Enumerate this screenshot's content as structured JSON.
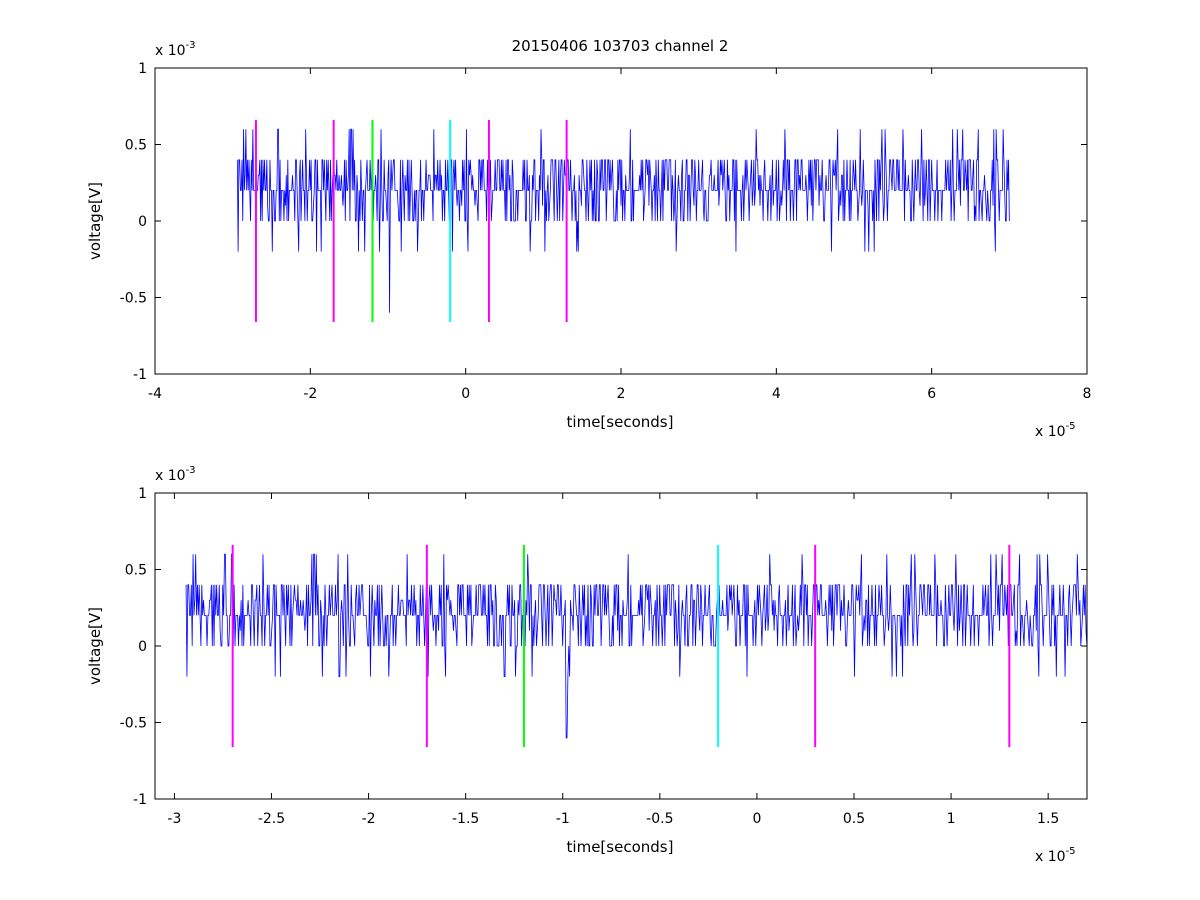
{
  "figure": {
    "title": "20150406 103703 channel 2"
  },
  "chart_data": [
    {
      "type": "line",
      "xlabel": "time[seconds]",
      "ylabel": "voltage[V]",
      "x_multiplier": {
        "base": "x 10",
        "exp": "-5"
      },
      "y_multiplier": {
        "base": "x 10",
        "exp": "-3"
      },
      "xlim": [
        -4e-05,
        8e-05
      ],
      "ylim": [
        -0.001,
        0.001
      ],
      "xticks": [
        -4,
        -2,
        0,
        2,
        4,
        6,
        8
      ],
      "xtick_labels": [
        "-4",
        "-2",
        "0",
        "2",
        "4",
        "6",
        "8"
      ],
      "yticks": [
        -1,
        -0.5,
        0,
        0.5,
        1
      ],
      "ytick_labels": [
        "-1",
        "-0.5",
        "0",
        "0.5",
        "1"
      ],
      "grid": false,
      "series": [
        {
          "color": "#0000ff",
          "x_start": -2.94e-05,
          "x_end": 7e-05,
          "sample_levels_mV": [
            0,
            0.1,
            0.2,
            0.3,
            0.4,
            0.5,
            0.6,
            -0.1,
            -0.2,
            -0.3,
            -0.4,
            -0.6
          ],
          "baseline_mV": 0.2,
          "min_mV": -0.6,
          "max_mV": 0.6
        }
      ],
      "markers": [
        {
          "x": -2.7e-05,
          "color": "#ff00ff",
          "ymin": -0.00066,
          "ymax": 0.00066
        },
        {
          "x": -1.7e-05,
          "color": "#ff00ff",
          "ymin": -0.00066,
          "ymax": 0.00066
        },
        {
          "x": -1.2e-05,
          "color": "#00ff00",
          "ymin": -0.00066,
          "ymax": 0.00066
        },
        {
          "x": -2e-06,
          "color": "#00ffff",
          "ymin": -0.00066,
          "ymax": 0.00066
        },
        {
          "x": 3e-06,
          "color": "#ff00ff",
          "ymin": -0.00066,
          "ymax": 0.00066
        },
        {
          "x": 1.3e-05,
          "color": "#ff00ff",
          "ymin": -0.00066,
          "ymax": 0.00066
        }
      ]
    },
    {
      "type": "line",
      "xlabel": "time[seconds]",
      "ylabel": "voltage[V]",
      "x_multiplier": {
        "base": "x 10",
        "exp": "-5"
      },
      "y_multiplier": {
        "base": "x 10",
        "exp": "-3"
      },
      "xlim": [
        -3.1e-05,
        1.7e-05
      ],
      "ylim": [
        -0.001,
        0.001
      ],
      "xticks": [
        -3,
        -2.5,
        -2,
        -1.5,
        -1,
        -0.5,
        0,
        0.5,
        1,
        1.5
      ],
      "xtick_labels": [
        "-3",
        "-2.5",
        "-2",
        "-1.5",
        "-1",
        "-0.5",
        "0",
        "0.5",
        "1",
        "1.5"
      ],
      "yticks": [
        -1,
        -0.5,
        0,
        0.5,
        1
      ],
      "ytick_labels": [
        "-1",
        "-0.5",
        "0",
        "0.5",
        "1"
      ],
      "grid": false,
      "series": [
        {
          "color": "#0000ff",
          "x_start": -2.94e-05,
          "x_end": 1.7e-05,
          "baseline_mV": 0.2,
          "min_mV": -0.6,
          "max_mV": 0.6
        }
      ],
      "markers": [
        {
          "x": -2.7e-05,
          "color": "#ff00ff",
          "ymin": -0.00066,
          "ymax": 0.00066
        },
        {
          "x": -1.7e-05,
          "color": "#ff00ff",
          "ymin": -0.00066,
          "ymax": 0.00066
        },
        {
          "x": -1.2e-05,
          "color": "#00ff00",
          "ymin": -0.00066,
          "ymax": 0.00066
        },
        {
          "x": -2e-06,
          "color": "#00ffff",
          "ymin": -0.00066,
          "ymax": 0.00066
        },
        {
          "x": 3e-06,
          "color": "#ff00ff",
          "ymin": -0.00066,
          "ymax": 0.00066
        },
        {
          "x": 1.3e-05,
          "color": "#ff00ff",
          "ymin": -0.00066,
          "ymax": 0.00066
        }
      ]
    }
  ]
}
